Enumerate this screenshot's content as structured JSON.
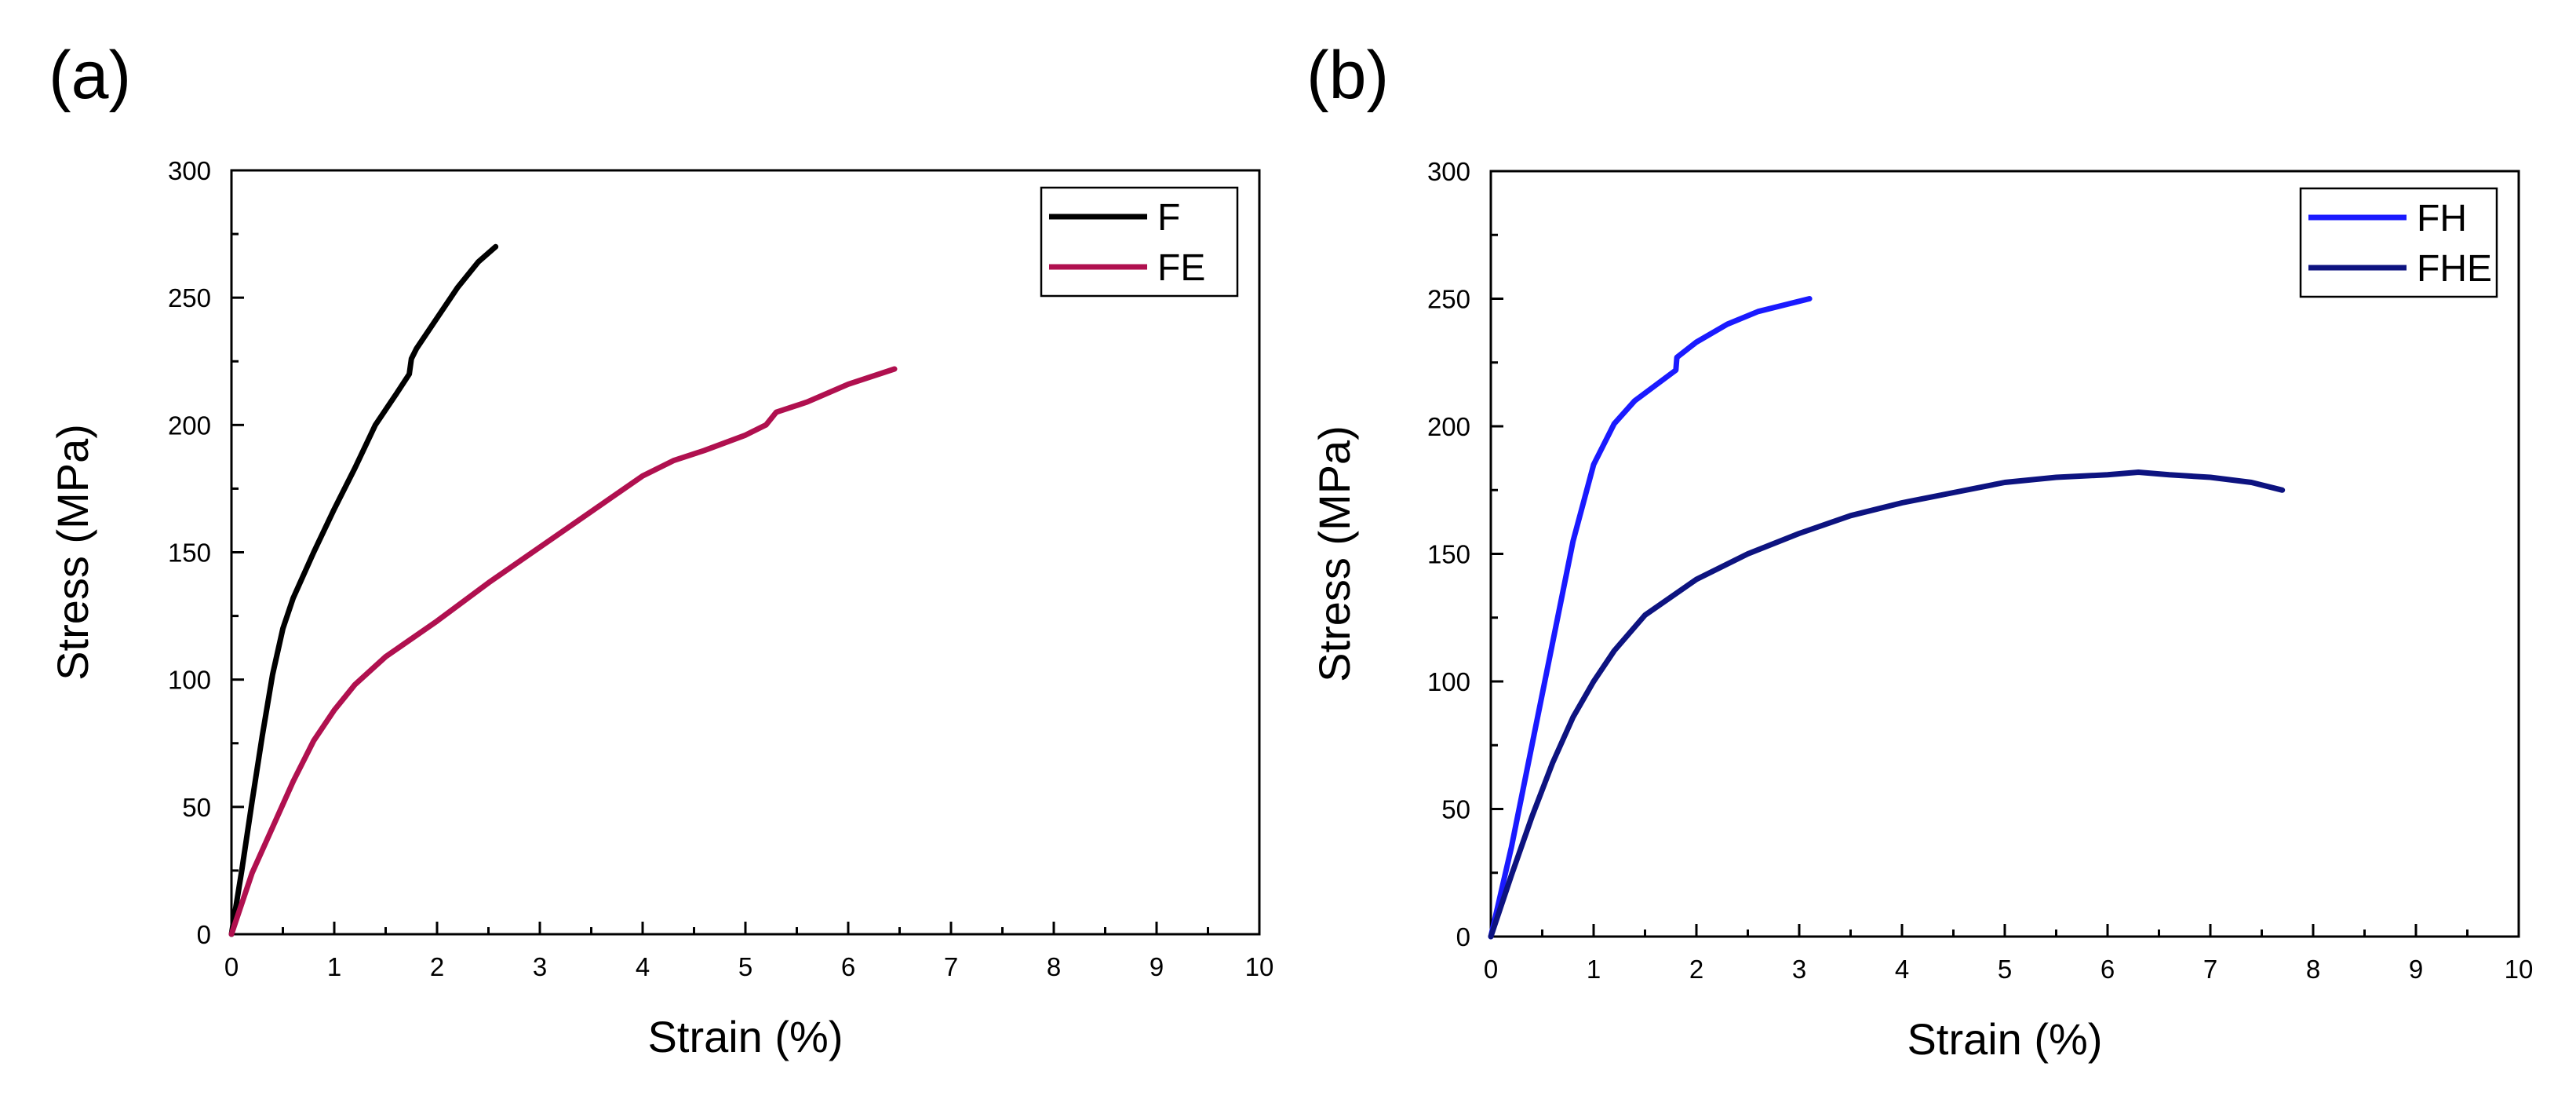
{
  "panels": [
    {
      "label": "(a)",
      "legend_position": "top-right"
    },
    {
      "label": "(b)",
      "legend_position": "top-right"
    }
  ],
  "chart_data": [
    {
      "type": "line",
      "panel": "(a)",
      "title": "",
      "xlabel": "Strain (%)",
      "ylabel": "Stress (MPa)",
      "xlim": [
        0,
        10
      ],
      "ylim": [
        0,
        300
      ],
      "xticks": [
        0,
        1,
        2,
        3,
        4,
        5,
        6,
        7,
        8,
        9,
        10
      ],
      "yticks": [
        0,
        50,
        100,
        150,
        200,
        250,
        300
      ],
      "grid": false,
      "series": [
        {
          "name": "F",
          "color": "#000000",
          "x": [
            0,
            0.1,
            0.2,
            0.3,
            0.4,
            0.5,
            0.6,
            0.8,
            1.0,
            1.2,
            1.4,
            1.6,
            1.73,
            1.75,
            1.8,
            2.0,
            2.2,
            2.4,
            2.57
          ],
          "y": [
            0,
            25,
            52,
            78,
            102,
            120,
            132,
            150,
            167,
            183,
            200,
            212,
            220,
            226,
            230,
            242,
            254,
            264,
            270
          ]
        },
        {
          "name": "FE",
          "color": "#b0104f",
          "x": [
            0,
            0.2,
            0.4,
            0.6,
            0.8,
            1.0,
            1.2,
            1.5,
            2.0,
            2.5,
            3.0,
            3.5,
            4.0,
            4.3,
            4.6,
            5.0,
            5.2,
            5.3,
            5.6,
            6.0,
            6.45
          ],
          "y": [
            0,
            24,
            42,
            60,
            76,
            88,
            98,
            109,
            123,
            138,
            152,
            166,
            180,
            186,
            190,
            196,
            200,
            205,
            209,
            216,
            222
          ]
        }
      ]
    },
    {
      "type": "line",
      "panel": "(b)",
      "title": "",
      "xlabel": "Strain (%)",
      "ylabel": "Stress (MPa)",
      "xlim": [
        0,
        10
      ],
      "ylim": [
        0,
        300
      ],
      "xticks": [
        0,
        1,
        2,
        3,
        4,
        5,
        6,
        7,
        8,
        9,
        10
      ],
      "yticks": [
        0,
        50,
        100,
        150,
        200,
        250,
        300
      ],
      "grid": false,
      "series": [
        {
          "name": "FH",
          "color": "#1a1aff",
          "x": [
            0,
            0.2,
            0.4,
            0.6,
            0.8,
            1.0,
            1.2,
            1.4,
            1.6,
            1.8,
            1.81,
            2.0,
            2.3,
            2.6,
            2.9,
            3.1
          ],
          "y": [
            0,
            35,
            75,
            115,
            155,
            185,
            201,
            210,
            216,
            222,
            227,
            233,
            240,
            245,
            248,
            250
          ]
        },
        {
          "name": "FHE",
          "color": "#0d1380",
          "x": [
            0,
            0.2,
            0.4,
            0.6,
            0.8,
            1.0,
            1.2,
            1.5,
            2.0,
            2.5,
            3.0,
            3.5,
            4.0,
            4.5,
            5.0,
            5.5,
            6.0,
            6.3,
            6.6,
            7.0,
            7.4,
            7.7
          ],
          "y": [
            0,
            24,
            47,
            68,
            86,
            100,
            112,
            126,
            140,
            150,
            158,
            165,
            170,
            174,
            178,
            180,
            181,
            182,
            181,
            180,
            178,
            175
          ]
        }
      ]
    }
  ]
}
